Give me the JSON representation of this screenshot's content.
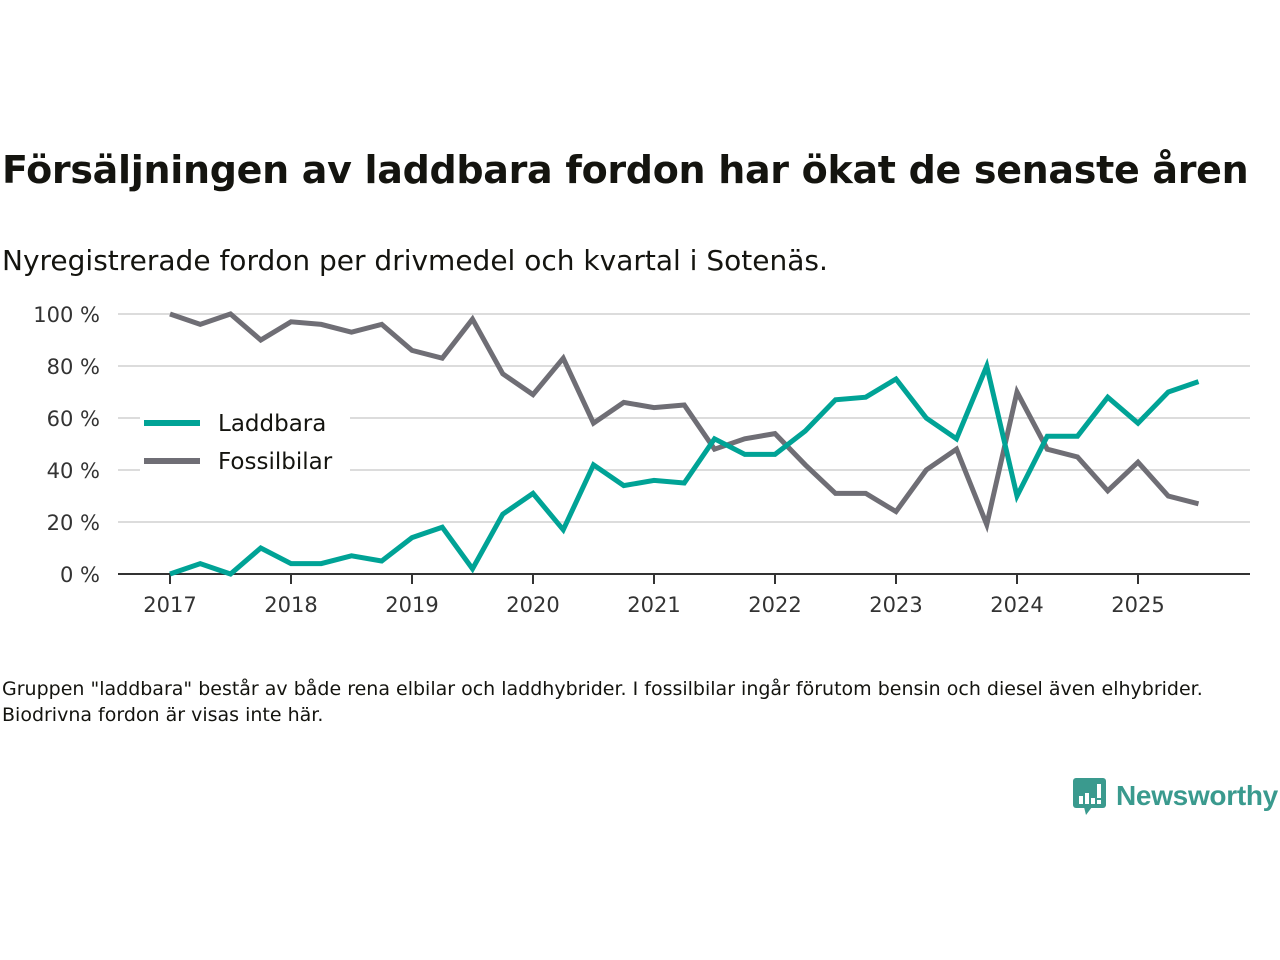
{
  "title": "Försäljningen av laddbara fordon har ökat de senaste åren",
  "subtitle": "Nyregistrerade fordon per drivmedel och kvartal i Sotenäs.",
  "note": "Gruppen \"laddbara\" består av både rena elbilar och laddhybrider. I fossilbilar ingår förutom bensin och diesel även elhybrider. Biodrivna fordon är visas inte här.",
  "brand": {
    "name": "Newsworthy",
    "color": "#3a9a8e",
    "icon": "newsworthy-logo-icon"
  },
  "chart_data": {
    "type": "line",
    "title": "Försäljningen av laddbara fordon har ökat de senaste åren",
    "subtitle": "Nyregistrerade fordon per drivmedel och kvartal i Sotenäs.",
    "xlabel": "",
    "ylabel": "",
    "ylim": [
      0,
      100
    ],
    "y_ticks": [
      0,
      20,
      40,
      60,
      80,
      100
    ],
    "y_tick_labels": [
      "0 %",
      "20 %",
      "40 %",
      "60 %",
      "80 %",
      "100 %"
    ],
    "x_tick_labels": [
      "2017",
      "2018",
      "2019",
      "2020",
      "2021",
      "2022",
      "2023",
      "2024",
      "2025"
    ],
    "grid": true,
    "legend_position": "left-middle",
    "x": [
      "2017Q1",
      "2017Q2",
      "2017Q3",
      "2017Q4",
      "2018Q1",
      "2018Q2",
      "2018Q3",
      "2018Q4",
      "2019Q1",
      "2019Q2",
      "2019Q3",
      "2019Q4",
      "2020Q1",
      "2020Q2",
      "2020Q3",
      "2020Q4",
      "2021Q1",
      "2021Q2",
      "2021Q3",
      "2021Q4",
      "2022Q1",
      "2022Q2",
      "2022Q3",
      "2022Q4",
      "2023Q1",
      "2023Q2",
      "2023Q3",
      "2023Q4",
      "2024Q1",
      "2024Q2",
      "2024Q3",
      "2024Q4",
      "2025Q1",
      "2025Q2",
      "2025Q3"
    ],
    "series": [
      {
        "name": "Laddbara",
        "color": "#00a396",
        "values": [
          0,
          4,
          0,
          10,
          4,
          4,
          7,
          5,
          14,
          18,
          2,
          23,
          31,
          17,
          42,
          34,
          36,
          35,
          52,
          46,
          46,
          55,
          67,
          68,
          75,
          60,
          52,
          80,
          30,
          53,
          53,
          68,
          58,
          70,
          74
        ]
      },
      {
        "name": "Fossilbilar",
        "color": "#6f6e75",
        "values": [
          100,
          96,
          100,
          90,
          97,
          96,
          93,
          96,
          86,
          83,
          98,
          77,
          69,
          83,
          58,
          66,
          64,
          65,
          48,
          52,
          54,
          42,
          31,
          31,
          24,
          40,
          48,
          19,
          70,
          48,
          45,
          32,
          43,
          30,
          27
        ]
      }
    ]
  }
}
